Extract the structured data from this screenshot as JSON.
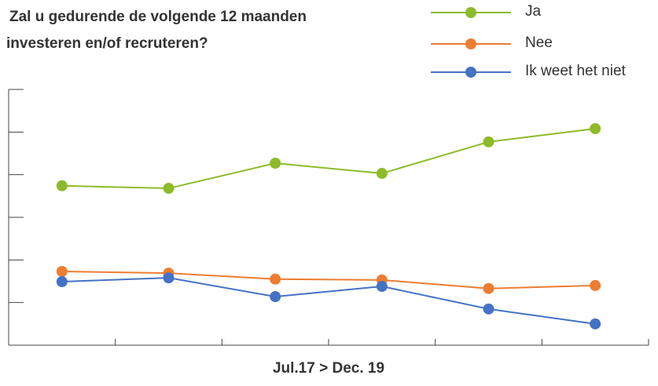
{
  "chart_data": {
    "type": "line",
    "title": [
      "Zal u gedurende de volgende 12 maanden",
      "investeren en/of recruteren?"
    ],
    "x_label": "Jul.17 > Dec. 19",
    "categories": [
      null,
      null,
      null,
      null,
      null,
      null
    ],
    "series": [
      {
        "name": "Ja",
        "color": "#8dbb2a",
        "values": [
          37.4,
          36.8,
          42.7,
          40.3,
          47.7,
          50.8
        ]
      },
      {
        "name": "Nee",
        "color": "#ed7d31",
        "values": [
          17.3,
          16.9,
          15.5,
          15.3,
          13.3,
          14.0
        ]
      },
      {
        "name": "Ik weet het niet",
        "color": "#4472c4",
        "values": [
          14.9,
          15.8,
          11.4,
          13.8,
          8.5,
          5.0
        ]
      }
    ],
    "ylim": [
      0,
      60
    ],
    "yticks": [
      0,
      10,
      20,
      30,
      40,
      50,
      60
    ],
    "legend": "top-right"
  }
}
